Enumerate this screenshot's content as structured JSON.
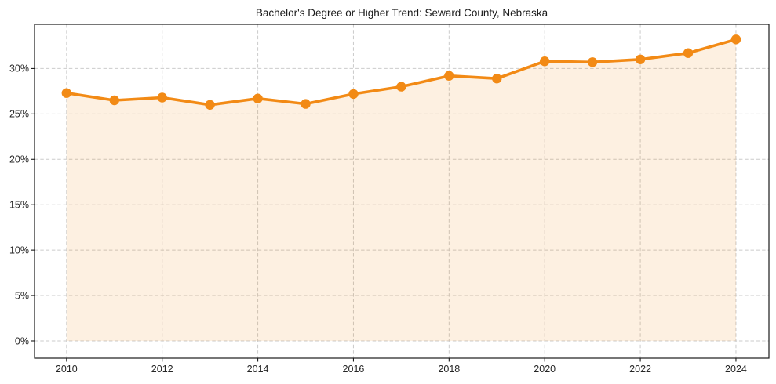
{
  "chart_data": {
    "type": "line",
    "title": "Bachelor's Degree or Higher Trend: Seward County, Nebraska",
    "xlabel": "",
    "ylabel": "",
    "x": [
      2010,
      2011,
      2012,
      2013,
      2014,
      2015,
      2016,
      2017,
      2018,
      2019,
      2020,
      2021,
      2022,
      2023,
      2024
    ],
    "series": [
      {
        "name": "Bachelor's degree or higher (%)",
        "values": [
          27.3,
          26.5,
          26.8,
          26.0,
          26.7,
          26.1,
          27.2,
          28.0,
          29.2,
          28.9,
          30.8,
          30.7,
          31.0,
          31.7,
          33.2
        ]
      }
    ],
    "x_ticks": [
      2010,
      2012,
      2014,
      2016,
      2018,
      2020,
      2022,
      2024
    ],
    "y_ticks": [
      0,
      5,
      10,
      15,
      20,
      25,
      30
    ],
    "y_tick_suffix": "%",
    "xlim": [
      2009.33,
      2024.69
    ],
    "ylim": [
      -1.9,
      34.87
    ],
    "grid": true,
    "grid_style": "dashed",
    "legend": false,
    "fill_to_zero": true,
    "marker": "circle",
    "style": {
      "line_color": "#F28A15",
      "fill_color": "#F28A15",
      "fill_opacity": 0.13,
      "grid_color": "#CBCBCB",
      "spine_color": "#1A1A1A",
      "tick_color": "#1A1A1A",
      "text_color": "#262626",
      "background": "#FFFFFF",
      "line_width": 3.6,
      "marker_radius": 6.2
    }
  }
}
